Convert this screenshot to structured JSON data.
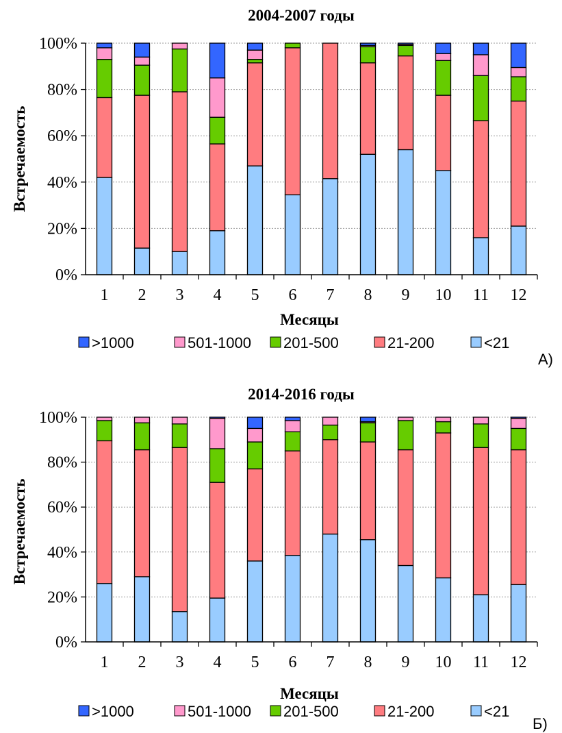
{
  "colors": {
    "gt1000": "#3366ff",
    "r501_1000": "#ff99cc",
    "r201_500": "#66cc00",
    "r21_200": "#ff7c80",
    "lt21": "#99ccff"
  },
  "legend": {
    "items": [
      ">1000",
      "501-1000",
      "201-500",
      "21-200",
      "<21"
    ]
  },
  "chart_data": [
    {
      "type": "bar",
      "stacked": true,
      "panel_label": "А)",
      "title": "2004-2007 годы",
      "xlabel": "Месяцы",
      "ylabel": "Встречаемость",
      "ylim": [
        0,
        100
      ],
      "yticks": [
        "0%",
        "20%",
        "40%",
        "60%",
        "80%",
        "100%"
      ],
      "grid": true,
      "legend_position": "bottom",
      "categories": [
        "1",
        "2",
        "3",
        "4",
        "5",
        "6",
        "7",
        "8",
        "9",
        "10",
        "11",
        "12"
      ],
      "series": [
        {
          "name": "<21",
          "values": [
            42,
            11.5,
            10,
            19,
            47,
            34.5,
            41.5,
            52,
            54,
            45,
            16,
            21
          ]
        },
        {
          "name": "21-200",
          "values": [
            34.5,
            66,
            69,
            37.5,
            44.5,
            63.5,
            58.5,
            39.5,
            40.5,
            32.5,
            50.5,
            54
          ]
        },
        {
          "name": "201-500",
          "values": [
            16.5,
            13,
            18.5,
            11.5,
            1.5,
            2,
            0,
            7,
            4.5,
            15,
            19.5,
            10.5
          ]
        },
        {
          "name": "501-1000",
          "values": [
            5,
            3.5,
            2.5,
            17,
            4,
            0,
            0,
            0.5,
            0.5,
            3,
            9,
            4
          ]
        },
        {
          "name": ">1000",
          "values": [
            2,
            6,
            0,
            15,
            3,
            0,
            0,
            1,
            0.5,
            4.5,
            5,
            10.5
          ]
        }
      ]
    },
    {
      "type": "bar",
      "stacked": true,
      "panel_label": "Б)",
      "title": "2014-2016 годы",
      "xlabel": "Месяцы",
      "ylabel": "Встречаемость",
      "ylim": [
        0,
        100
      ],
      "yticks": [
        "0%",
        "20%",
        "40%",
        "60%",
        "80%",
        "100%"
      ],
      "grid": true,
      "legend_position": "bottom",
      "categories": [
        "1",
        "2",
        "3",
        "4",
        "5",
        "6",
        "7",
        "8",
        "9",
        "10",
        "11",
        "12"
      ],
      "series": [
        {
          "name": "<21",
          "values": [
            26,
            29,
            13.5,
            19.5,
            36,
            38.5,
            48,
            45.5,
            34,
            28.5,
            21,
            25.5
          ]
        },
        {
          "name": "21-200",
          "values": [
            63.5,
            56.5,
            73,
            51.5,
            41,
            46.5,
            42,
            43.5,
            51.5,
            64.5,
            65.5,
            60
          ]
        },
        {
          "name": "201-500",
          "values": [
            9,
            12,
            10.5,
            15,
            12,
            8.5,
            6.5,
            8.5,
            13,
            5,
            10.5,
            9.5
          ]
        },
        {
          "name": "501-1000",
          "values": [
            1.5,
            2.5,
            3,
            13.5,
            6,
            5,
            3.5,
            0.5,
            1.5,
            2,
            3,
            4.5
          ]
        },
        {
          "name": ">1000",
          "values": [
            0,
            0,
            0,
            0.5,
            5,
            1.5,
            0,
            2,
            0,
            0,
            0,
            0.5
          ]
        }
      ]
    }
  ]
}
